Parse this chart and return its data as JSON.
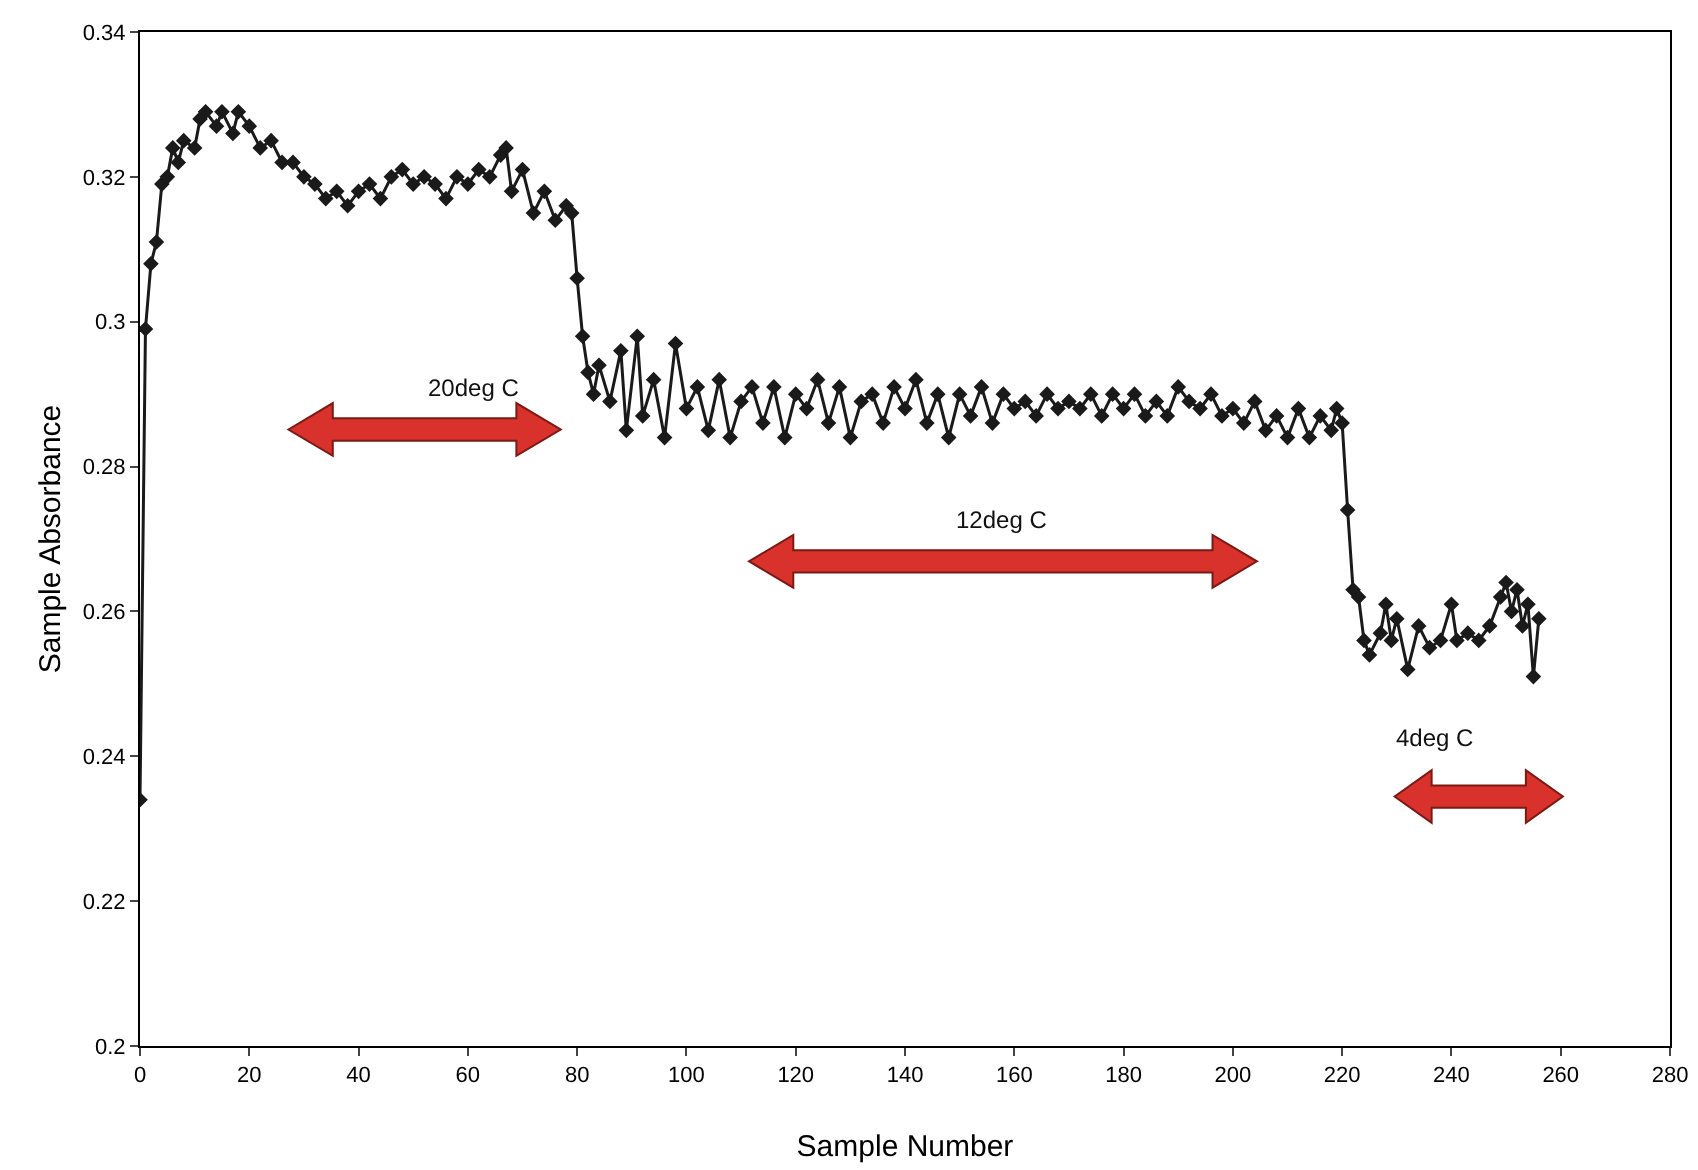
{
  "chart_data": {
    "type": "line",
    "xlabel": "Sample Number",
    "ylabel": "Sample Absorbance",
    "xlim": [
      0,
      280
    ],
    "xticks": [
      0,
      20,
      40,
      60,
      80,
      100,
      120,
      140,
      160,
      180,
      200,
      220,
      240,
      260,
      280
    ],
    "ylim": [
      0.2,
      0.34
    ],
    "yticks": [
      0.2,
      0.22,
      0.24,
      0.26,
      0.28,
      0.3,
      0.32,
      0.34
    ],
    "grid": false,
    "marker": "diamond",
    "line_style": "solid",
    "series": [
      {
        "color": "#1a1a1a",
        "x": [
          0,
          1,
          2,
          3,
          4,
          5,
          6,
          7,
          8,
          10,
          11,
          12,
          14,
          15,
          17,
          18,
          20,
          22,
          24,
          26,
          28,
          30,
          32,
          34,
          36,
          38,
          40,
          42,
          44,
          46,
          48,
          50,
          52,
          54,
          56,
          58,
          60,
          62,
          64,
          66,
          67,
          68,
          70,
          72,
          74,
          76,
          78,
          79,
          80,
          81,
          82,
          83,
          84,
          86,
          88,
          89,
          91,
          92,
          94,
          96,
          98,
          100,
          102,
          104,
          106,
          108,
          110,
          112,
          114,
          116,
          118,
          120,
          122,
          124,
          126,
          128,
          130,
          132,
          134,
          136,
          138,
          140,
          142,
          144,
          146,
          148,
          150,
          152,
          154,
          156,
          158,
          160,
          162,
          164,
          166,
          168,
          170,
          172,
          174,
          176,
          178,
          180,
          182,
          184,
          186,
          188,
          190,
          192,
          194,
          196,
          198,
          200,
          202,
          204,
          206,
          208,
          210,
          212,
          214,
          216,
          218,
          219,
          220,
          221,
          222,
          223,
          224,
          225,
          227,
          228,
          229,
          230,
          232,
          234,
          236,
          238,
          240,
          241,
          243,
          245,
          247,
          249,
          250,
          251,
          252,
          253,
          254,
          255,
          256
        ],
        "values": [
          0.234,
          0.299,
          0.308,
          0.311,
          0.319,
          0.32,
          0.324,
          0.322,
          0.325,
          0.324,
          0.328,
          0.329,
          0.327,
          0.329,
          0.326,
          0.329,
          0.327,
          0.324,
          0.325,
          0.322,
          0.322,
          0.32,
          0.319,
          0.317,
          0.318,
          0.316,
          0.318,
          0.319,
          0.317,
          0.32,
          0.321,
          0.319,
          0.32,
          0.319,
          0.317,
          0.32,
          0.319,
          0.321,
          0.32,
          0.323,
          0.324,
          0.318,
          0.321,
          0.315,
          0.318,
          0.314,
          0.316,
          0.315,
          0.306,
          0.298,
          0.293,
          0.29,
          0.294,
          0.289,
          0.296,
          0.285,
          0.298,
          0.287,
          0.292,
          0.284,
          0.297,
          0.288,
          0.291,
          0.285,
          0.292,
          0.284,
          0.289,
          0.291,
          0.286,
          0.291,
          0.284,
          0.29,
          0.288,
          0.292,
          0.286,
          0.291,
          0.284,
          0.289,
          0.29,
          0.286,
          0.291,
          0.288,
          0.292,
          0.286,
          0.29,
          0.284,
          0.29,
          0.287,
          0.291,
          0.286,
          0.29,
          0.288,
          0.289,
          0.287,
          0.29,
          0.288,
          0.289,
          0.288,
          0.29,
          0.287,
          0.29,
          0.288,
          0.29,
          0.287,
          0.289,
          0.287,
          0.291,
          0.289,
          0.288,
          0.29,
          0.287,
          0.288,
          0.286,
          0.289,
          0.285,
          0.287,
          0.284,
          0.288,
          0.284,
          0.287,
          0.285,
          0.288,
          0.286,
          0.274,
          0.263,
          0.262,
          0.256,
          0.254,
          0.257,
          0.261,
          0.256,
          0.259,
          0.252,
          0.258,
          0.255,
          0.256,
          0.261,
          0.256,
          0.257,
          0.256,
          0.258,
          0.262,
          0.264,
          0.26,
          0.263,
          0.258,
          0.261,
          0.251,
          0.259
        ]
      }
    ],
    "annotations": [
      "20deg C",
      "12deg C",
      "4deg C"
    ]
  }
}
